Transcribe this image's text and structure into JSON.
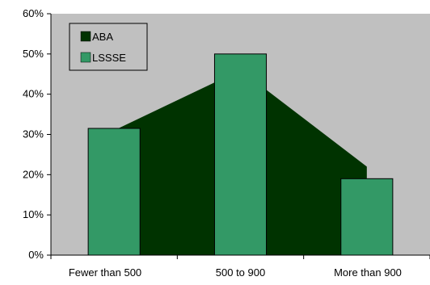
{
  "chart_data": {
    "type": "area+bar",
    "title": "",
    "xlabel": "",
    "ylabel": "",
    "categories": [
      "Fewer than 500",
      "500 to 900",
      "More than 900"
    ],
    "series": [
      {
        "name": "ABA",
        "type": "area",
        "values": [
          31,
          46,
          22
        ],
        "color": "#003300"
      },
      {
        "name": "LSSSE",
        "type": "bar",
        "values": [
          31.5,
          50,
          19
        ],
        "color": "#339966"
      }
    ],
    "ylim": [
      0,
      60
    ],
    "yticks": [
      "0%",
      "10%",
      "20%",
      "30%",
      "40%",
      "50%",
      "60%"
    ],
    "grid": false,
    "plot_background": "#c0c0c0",
    "legend_position": "top-left"
  }
}
